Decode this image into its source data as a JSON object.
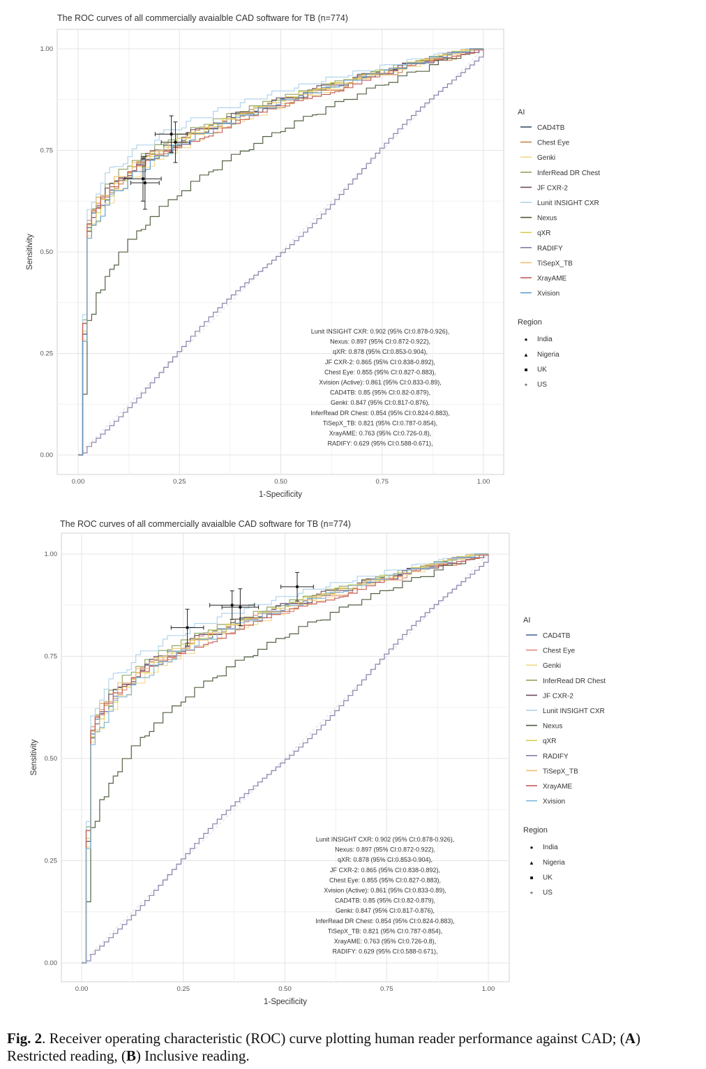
{
  "caption": {
    "fig_label": "Fig. 2",
    "text_before_A": ". Receiver operating characteristic (ROC) curve plotting human reader performance against CAD; (",
    "label_A": "A",
    "text_mid": ") Restricted reading, (",
    "label_B": "B",
    "text_after": ") Inclusive reading."
  },
  "chart_data": [
    {
      "type": "line",
      "panel": "A",
      "title": "The ROC curves of all commercially avaialble CAD software for TB (n=774)",
      "xlabel": "1-Specificity",
      "ylabel": "Sensitivity",
      "xlim": [
        0,
        1
      ],
      "ylim": [
        0,
        1
      ],
      "xticks": [
        "0.00",
        "0.25",
        "0.50",
        "0.75",
        "1.00"
      ],
      "yticks": [
        "0.00",
        "0.25",
        "0.50",
        "0.75",
        "1.00"
      ],
      "grid": true,
      "legend_ai_title": "AI",
      "legend_region_title": "Region",
      "series": [
        {
          "name": "CAD4TB",
          "color": "#3b4f63",
          "k": 0.128,
          "p": 0.24
        },
        {
          "name": "Chest Eye",
          "color": "#c9834a",
          "k": 0.145,
          "p": 0.22
        },
        {
          "name": "Genki",
          "color": "#f2d88a",
          "k": 0.16,
          "p": 0.24
        },
        {
          "name": "InferRead DR Chest",
          "color": "#8ea35c",
          "k": 0.125,
          "p": 0.22
        },
        {
          "name": "JF CXR-2",
          "color": "#6a4a62",
          "k": 0.118,
          "p": 0.24
        },
        {
          "name": "Lunit INSIGHT CXR",
          "color": "#aed2ea",
          "k": 0.085,
          "p": 0.22
        },
        {
          "name": "Nexus",
          "color": "#4a5a3a",
          "k": 0.095,
          "p": 0.55
        },
        {
          "name": "qXR",
          "color": "#d4cf55",
          "k": 0.11,
          "p": 0.26
        },
        {
          "name": "RADIFY",
          "color": "#8578a8",
          "k": 0.98,
          "p": 0.8
        },
        {
          "name": "TiSepX_TB",
          "color": "#f0c070",
          "k": 0.16,
          "p": 0.2
        },
        {
          "name": "XrayAME",
          "color": "#c45c5c",
          "k": 0.2,
          "p": 0.18
        },
        {
          "name": "Xvision",
          "color": "#5d9bd0",
          "k": 0.11,
          "p": 0.28
        }
      ],
      "regions": [
        {
          "name": "India",
          "symbol": "●"
        },
        {
          "name": "Nigeria",
          "symbol": "▲"
        },
        {
          "name": "UK",
          "symbol": "■"
        },
        {
          "name": "US",
          "symbol": "+"
        }
      ],
      "reader_points": [
        {
          "region": "India",
          "x": 0.16,
          "y": 0.68,
          "xerr": 0.045,
          "yerr": 0.055
        },
        {
          "region": "Nigeria",
          "x": 0.165,
          "y": 0.67,
          "xerr": 0.035,
          "yerr": 0.065
        },
        {
          "region": "UK",
          "x": 0.23,
          "y": 0.79,
          "xerr": 0.04,
          "yerr": 0.045
        },
        {
          "region": "US",
          "x": 0.24,
          "y": 0.77,
          "xerr": 0.035,
          "yerr": 0.05
        }
      ],
      "auc_annotations": [
        "Lunit INSIGHT CXR: 0.902 (95% CI:0.878-0.926),",
        "Nexus: 0.897 (95% CI:0.872-0.922),",
        "qXR: 0.878 (95% CI:0.853-0.904),",
        "JF CXR-2: 0.865 (95% CI:0.838-0.892),",
        "Chest Eye: 0.855 (95% CI:0.827-0.883),",
        "Xvision (Active): 0.861 (95% CI:0.833-0.89),",
        "CAD4TB: 0.85 (95% CI:0.82-0.879),",
        "Genki: 0.847 (95% CI:0.817-0.876),",
        "InferRead DR Chest: 0.854 (95% CI:0.824-0.883),",
        "TiSepX_TB: 0.821 (95% CI:0.787-0.854),",
        "XrayAME: 0.763 (95% CI:0.726-0.8),",
        "RADIFY: 0.629 (95% CI:0.588-0.671),"
      ]
    },
    {
      "type": "line",
      "panel": "B",
      "title": "The ROC curves of all commercially avaialble CAD software for TB (n=774)",
      "xlabel": "1-Specificity",
      "ylabel": "Sensitivity",
      "xlim": [
        0,
        1
      ],
      "ylim": [
        0,
        1
      ],
      "xticks": [
        "0.00",
        "0.25",
        "0.50",
        "0.75",
        "1.00"
      ],
      "yticks": [
        "0.00",
        "0.25",
        "0.50",
        "0.75",
        "1.00"
      ],
      "grid": true,
      "legend_ai_title": "AI",
      "legend_region_title": "Region",
      "series": [
        {
          "name": "CAD4TB",
          "color": "#4b6a9b",
          "k": 0.128,
          "p": 0.24
        },
        {
          "name": "Chest Eye",
          "color": "#e0887a",
          "k": 0.145,
          "p": 0.22
        },
        {
          "name": "Genki",
          "color": "#f2d88a",
          "k": 0.16,
          "p": 0.24
        },
        {
          "name": "InferRead DR Chest",
          "color": "#8ea35c",
          "k": 0.125,
          "p": 0.22
        },
        {
          "name": "JF CXR-2",
          "color": "#6a4a62",
          "k": 0.118,
          "p": 0.24
        },
        {
          "name": "Lunit INSIGHT CXR",
          "color": "#aed2ea",
          "k": 0.085,
          "p": 0.22
        },
        {
          "name": "Nexus",
          "color": "#4a5a3a",
          "k": 0.095,
          "p": 0.55
        },
        {
          "name": "qXR",
          "color": "#d4cf55",
          "k": 0.11,
          "p": 0.26
        },
        {
          "name": "RADIFY",
          "color": "#8578a8",
          "k": 0.98,
          "p": 0.8
        },
        {
          "name": "TiSepX_TB",
          "color": "#f0c070",
          "k": 0.16,
          "p": 0.2
        },
        {
          "name": "XrayAME",
          "color": "#c45c5c",
          "k": 0.2,
          "p": 0.18
        },
        {
          "name": "Xvision",
          "color": "#7fb5d8",
          "k": 0.11,
          "p": 0.28
        }
      ],
      "regions": [
        {
          "name": "India",
          "symbol": "●"
        },
        {
          "name": "Nigeria",
          "symbol": "▲"
        },
        {
          "name": "UK",
          "symbol": "■"
        },
        {
          "name": "US",
          "symbol": "+"
        }
      ],
      "reader_points": [
        {
          "region": "India",
          "x": 0.26,
          "y": 0.82,
          "xerr": 0.04,
          "yerr": 0.045
        },
        {
          "region": "Nigeria",
          "x": 0.37,
          "y": 0.875,
          "xerr": 0.055,
          "yerr": 0.035
        },
        {
          "region": "UK",
          "x": 0.39,
          "y": 0.87,
          "xerr": 0.045,
          "yerr": 0.045
        },
        {
          "region": "US",
          "x": 0.53,
          "y": 0.92,
          "xerr": 0.04,
          "yerr": 0.035
        }
      ],
      "auc_annotations": [
        "Lunit INSIGHT CXR: 0.902 (95% CI:0.878-0.926),",
        "Nexus: 0.897 (95% CI:0.872-0.922),",
        "qXR: 0.878 (95% CI:0.853-0.904),",
        "JF CXR-2: 0.865 (95% CI:0.838-0.892),",
        "Chest Eye: 0.855 (95% CI:0.827-0.883),",
        "Xvision (Active): 0.861 (95% CI:0.833-0.89),",
        "CAD4TB: 0.85 (95% CI:0.82-0.879),",
        "Genki: 0.847 (95% CI:0.817-0.876),",
        "InferRead DR Chest: 0.854 (95% CI:0.824-0.883),",
        "TiSepX_TB: 0.821 (95% CI:0.787-0.854),",
        "XrayAME: 0.763 (95% CI:0.726-0.8),",
        "RADIFY: 0.629 (95% CI:0.588-0.671),"
      ]
    }
  ]
}
